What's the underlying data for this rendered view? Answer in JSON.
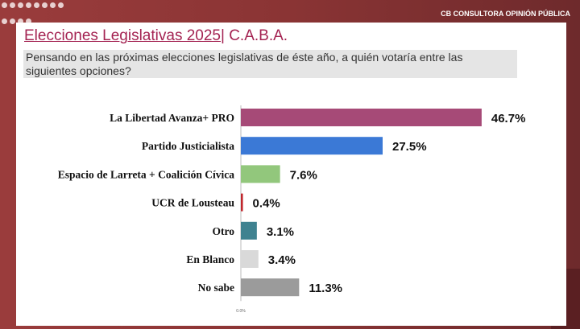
{
  "header": {
    "brand": "CB CONSULTORA OPINIÓN PÚBLICA",
    "title_main": "Elecciones Legislativas 2025",
    "title_suffix": "| C.A.B.A.",
    "question": "Pensando en las próximas elecciones legislativas de éste año, a quién votaría entre las siguientes opciones?"
  },
  "chart_data": {
    "type": "bar",
    "orientation": "horizontal",
    "categories": [
      "La Libertad Avanza+ PRO",
      "Partido Justicialista",
      "Espacio de Larreta + Coalición Cívica",
      "UCR de Lousteau",
      "Otro",
      "En Blanco",
      "No sabe"
    ],
    "values": [
      46.7,
      27.5,
      7.6,
      0.4,
      3.1,
      3.4,
      11.3
    ],
    "data_labels": [
      "46.7%",
      "27.5%",
      "7.6%",
      "0.4%",
      "3.1%",
      "3.4%",
      "11.3%"
    ],
    "colors": [
      "#a64a77",
      "#3b79d6",
      "#92c77c",
      "#c0272d",
      "#3f8290",
      "#d9d9d9",
      "#9b9b9b"
    ],
    "x_tick_labels": [
      "0.0%"
    ],
    "grid": false
  }
}
